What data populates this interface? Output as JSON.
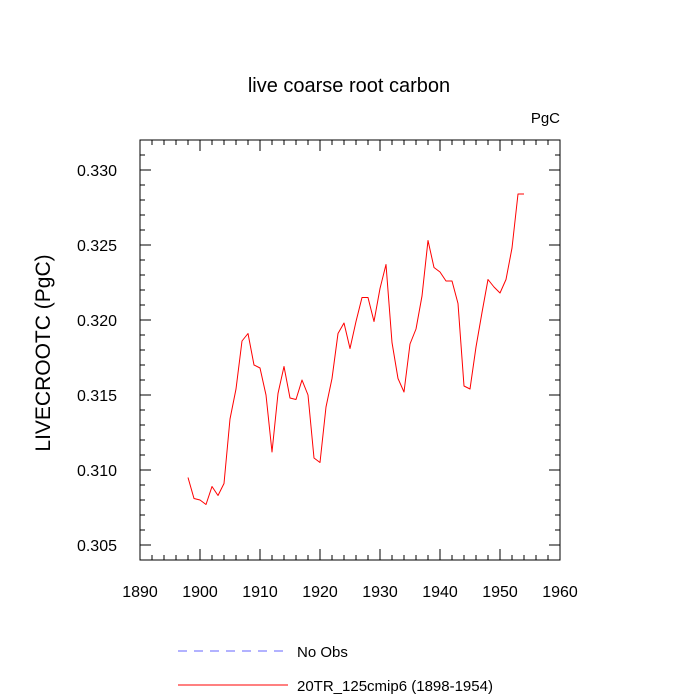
{
  "chart_data": {
    "type": "line",
    "title": "live coarse root carbon",
    "units_label": "PgC",
    "xlabel": "",
    "ylabel": "LIVECROOTC  (PgC)",
    "xlim": [
      1890,
      1960
    ],
    "ylim": [
      0.304,
      0.332
    ],
    "x_ticks": [
      1890,
      1900,
      1910,
      1920,
      1930,
      1940,
      1950,
      1960
    ],
    "x_tick_labels": [
      "1890",
      "1900",
      "1910",
      "1920",
      "1930",
      "1940",
      "1950",
      "1960"
    ],
    "y_ticks": [
      0.305,
      0.31,
      0.315,
      0.32,
      0.325,
      0.33
    ],
    "y_tick_labels": [
      "0.305",
      "0.310",
      "0.315",
      "0.320",
      "0.325",
      "0.330"
    ],
    "grid": false,
    "legend_position": "bottom",
    "series": [
      {
        "name": "No Obs",
        "color": "#6666ff",
        "dash": "dashed",
        "x": [],
        "y": []
      },
      {
        "name": "20TR_125cmip6 (1898-1954)",
        "color": "#ff0000",
        "dash": "solid",
        "x": [
          1898,
          1899,
          1900,
          1901,
          1902,
          1903,
          1904,
          1905,
          1906,
          1907,
          1908,
          1909,
          1910,
          1911,
          1912,
          1913,
          1914,
          1915,
          1916,
          1917,
          1918,
          1919,
          1920,
          1921,
          1922,
          1923,
          1924,
          1925,
          1926,
          1927,
          1928,
          1929,
          1930,
          1931,
          1932,
          1933,
          1934,
          1935,
          1936,
          1937,
          1938,
          1939,
          1940,
          1941,
          1942,
          1943,
          1944,
          1945,
          1946,
          1947,
          1948,
          1949,
          1950,
          1951,
          1952,
          1953,
          1954
        ],
        "y": [
          0.3095,
          0.3081,
          0.308,
          0.3077,
          0.3089,
          0.3083,
          0.3091,
          0.3134,
          0.3154,
          0.3186,
          0.3191,
          0.317,
          0.3168,
          0.315,
          0.3112,
          0.3151,
          0.3169,
          0.3148,
          0.3147,
          0.316,
          0.315,
          0.3108,
          0.3105,
          0.3142,
          0.3161,
          0.3191,
          0.3198,
          0.3181,
          0.3199,
          0.3215,
          0.3215,
          0.3199,
          0.3221,
          0.3237,
          0.3185,
          0.3161,
          0.3152,
          0.3184,
          0.3194,
          0.3216,
          0.3253,
          0.3235,
          0.3232,
          0.3226,
          0.3226,
          0.3211,
          0.3156,
          0.3154,
          0.3182,
          0.3205,
          0.3227,
          0.3222,
          0.3218,
          0.3227,
          0.3248,
          0.3284,
          0.3284
        ]
      }
    ]
  }
}
